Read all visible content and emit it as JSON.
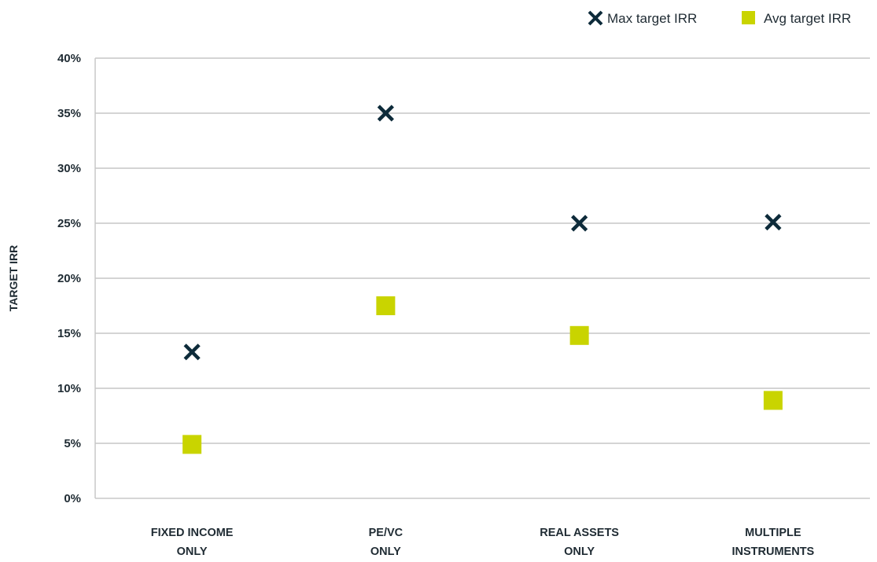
{
  "chart_data": {
    "type": "scatter",
    "ylabel": "TARGET IRR",
    "xlabel": "",
    "ylim": [
      0,
      40
    ],
    "yticks": [
      "0%",
      "5%",
      "10%",
      "15%",
      "20%",
      "25%",
      "30%",
      "35%",
      "40%"
    ],
    "categories": [
      [
        "FIXED INCOME",
        "ONLY"
      ],
      [
        "PE/VC",
        "ONLY"
      ],
      [
        "REAL ASSETS",
        "ONLY"
      ],
      [
        "MULTIPLE",
        "INSTRUMENTS"
      ]
    ],
    "series": [
      {
        "name": "Max target IRR",
        "marker": "x",
        "color": "#0d2b3a",
        "values": [
          13.3,
          35.0,
          25.0,
          25.1
        ]
      },
      {
        "name": "Avg target IRR",
        "marker": "square",
        "color": "#c9d400",
        "values": [
          4.9,
          17.5,
          14.8,
          8.9
        ]
      }
    ],
    "grid": true,
    "legend": "top-right"
  }
}
